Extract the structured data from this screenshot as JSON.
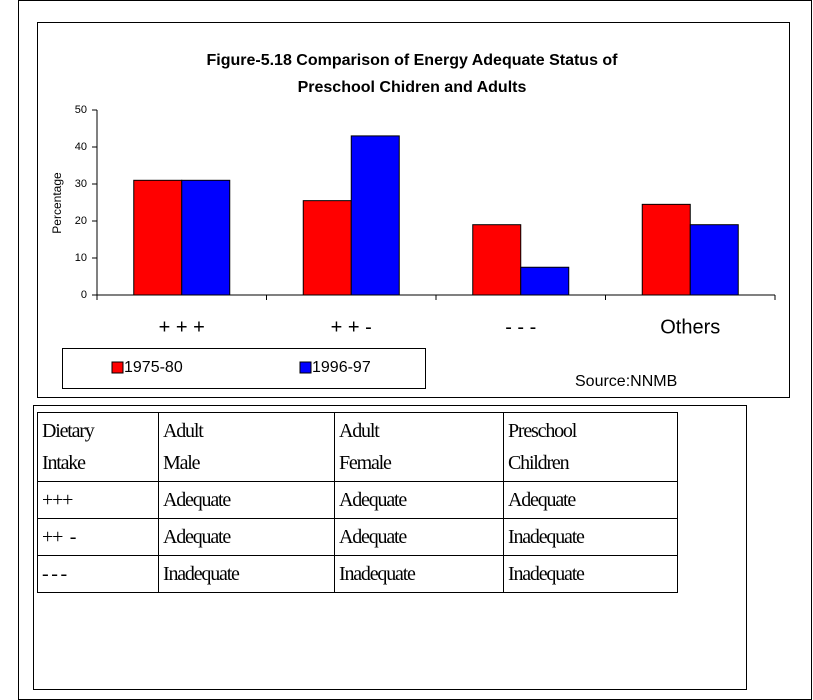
{
  "chart_data": {
    "type": "bar",
    "title": [
      "Figure-5.18 Comparison of Energy Adequate Status of",
      "Preschool Chidren and Adults"
    ],
    "y_label": "Percentage",
    "categories": [
      "+ + +",
      "+ + -",
      "- - -",
      "Others"
    ],
    "series": [
      {
        "name": "1975-80",
        "color": "#ff0000",
        "values": [
          31,
          25.5,
          19,
          24.5
        ]
      },
      {
        "name": "1996-97",
        "color": "#0000ff",
        "values": [
          31,
          43,
          7.5,
          19
        ]
      }
    ],
    "ylim": [
      0,
      50
    ],
    "yticks": [
      0,
      10,
      20,
      30,
      40,
      50
    ],
    "source": "Source:NNMB"
  },
  "table": {
    "header": [
      [
        "Dietary",
        "Intake"
      ],
      [
        "Adult",
        "Male"
      ],
      [
        "Adult",
        "Female"
      ],
      [
        "Preschool",
        "Children"
      ]
    ],
    "rows": [
      [
        "+++",
        "Adequate",
        "Adequate",
        "Adequate"
      ],
      [
        "++  -",
        "Adequate",
        "Adequate",
        "Inadequate"
      ],
      [
        "- - -",
        "Inadequate",
        "Inadequate",
        "Inadequate"
      ]
    ]
  }
}
